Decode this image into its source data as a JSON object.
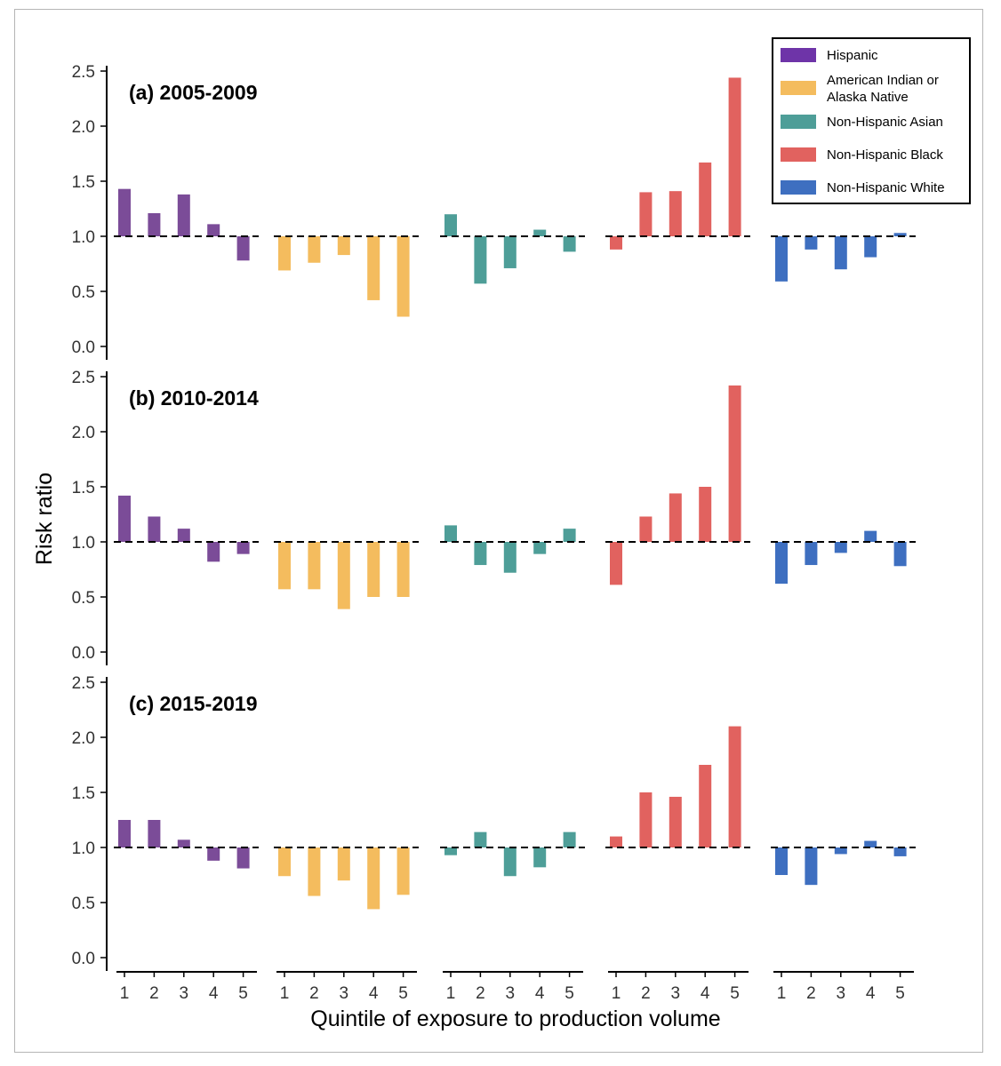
{
  "chart_data": {
    "type": "bar",
    "baseline": 1.0,
    "ylabel": "Risk ratio",
    "xlabel": "Quintile of exposure to production volume",
    "ylim": [
      0,
      2.5
    ],
    "yticks": [
      "0.0",
      "0.5",
      "1.0",
      "1.5",
      "2.0",
      "2.5"
    ],
    "categories": [
      "1",
      "2",
      "3",
      "4",
      "5"
    ],
    "legend": {
      "position": "top-right",
      "entries": [
        {
          "key": "hispanic",
          "lines": [
            "Hispanic"
          ]
        },
        {
          "key": "aian",
          "lines": [
            "American Indian or",
            "Alaska Native"
          ]
        },
        {
          "key": "asian",
          "lines": [
            "Non-Hispanic Asian"
          ]
        },
        {
          "key": "black",
          "lines": [
            "Non-Hispanic Black"
          ]
        },
        {
          "key": "white",
          "lines": [
            "Non-Hispanic White"
          ]
        }
      ]
    },
    "series_colors": {
      "hispanic": "#7b4c98",
      "aian": "#f4bc5e",
      "asian": "#4e9e98",
      "black": "#e1625f",
      "white": "#3e6fc0"
    },
    "legend_colors": {
      "hispanic": "#6e34a8",
      "aian": "#f4bc5e",
      "asian": "#4e9e98",
      "black": "#e1625f",
      "white": "#3e6fc0"
    },
    "panels": [
      {
        "title": "(a) 2005-2009",
        "series": [
          {
            "key": "hispanic",
            "values": [
              1.43,
              1.21,
              1.38,
              1.11,
              0.78
            ]
          },
          {
            "key": "aian",
            "values": [
              0.69,
              0.76,
              0.83,
              0.42,
              0.27
            ]
          },
          {
            "key": "asian",
            "values": [
              1.2,
              0.57,
              0.71,
              1.06,
              0.86
            ]
          },
          {
            "key": "black",
            "values": [
              0.88,
              1.4,
              1.41,
              1.67,
              2.44
            ]
          },
          {
            "key": "white",
            "values": [
              0.59,
              0.88,
              0.7,
              0.81,
              1.03
            ]
          }
        ]
      },
      {
        "title": "(b) 2010-2014",
        "series": [
          {
            "key": "hispanic",
            "values": [
              1.42,
              1.23,
              1.12,
              0.82,
              0.89
            ]
          },
          {
            "key": "aian",
            "values": [
              0.57,
              0.57,
              0.39,
              0.5,
              0.5
            ]
          },
          {
            "key": "asian",
            "values": [
              1.15,
              0.79,
              0.72,
              0.89,
              1.12
            ]
          },
          {
            "key": "black",
            "values": [
              0.61,
              1.23,
              1.44,
              1.5,
              2.42
            ]
          },
          {
            "key": "white",
            "values": [
              0.62,
              0.79,
              0.9,
              1.1,
              0.78
            ]
          }
        ]
      },
      {
        "title": "(c) 2015-2019",
        "series": [
          {
            "key": "hispanic",
            "values": [
              1.25,
              1.25,
              1.07,
              0.88,
              0.81
            ]
          },
          {
            "key": "aian",
            "values": [
              0.74,
              0.56,
              0.7,
              0.44,
              0.57
            ]
          },
          {
            "key": "asian",
            "values": [
              0.93,
              1.14,
              0.74,
              0.82,
              1.14
            ]
          },
          {
            "key": "black",
            "values": [
              1.1,
              1.5,
              1.46,
              1.75,
              2.1
            ]
          },
          {
            "key": "white",
            "values": [
              0.75,
              0.66,
              0.94,
              1.06,
              0.92
            ]
          }
        ]
      }
    ]
  }
}
